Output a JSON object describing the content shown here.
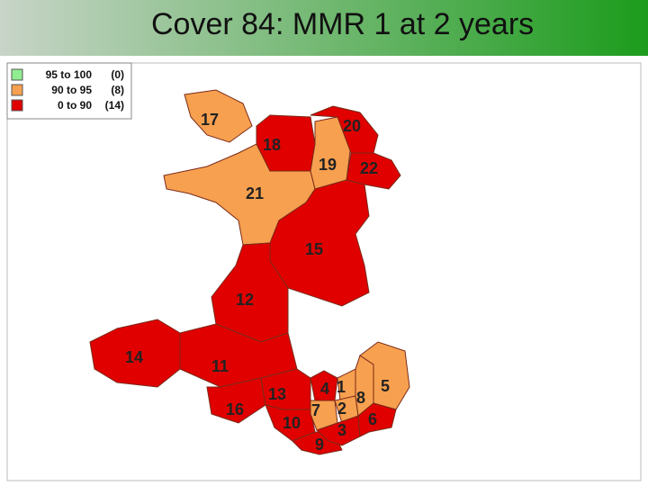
{
  "title": "Cover 84: MMR 1 at 2 years",
  "legend": [
    {
      "range": "95 to 100",
      "count": "(0)",
      "color": "#90ee90"
    },
    {
      "range": "90 to  95",
      "count": "(8)",
      "color": "#f7a04f"
    },
    {
      "range": "0 to  90",
      "count": "(14)",
      "color": "#e00000"
    }
  ],
  "regions": [
    {
      "label": "17",
      "color": "#f7a04f"
    },
    {
      "label": "18",
      "color": "#e00000"
    },
    {
      "label": "20",
      "color": "#e00000"
    },
    {
      "label": "19",
      "color": "#f7a04f"
    },
    {
      "label": "22",
      "color": "#e00000"
    },
    {
      "label": "21",
      "color": "#f7a04f"
    },
    {
      "label": "15",
      "color": "#e00000"
    },
    {
      "label": "12",
      "color": "#e00000"
    },
    {
      "label": "14",
      "color": "#e00000"
    },
    {
      "label": "11",
      "color": "#e00000"
    },
    {
      "label": "16",
      "color": "#e00000"
    },
    {
      "label": "13",
      "color": "#e00000"
    },
    {
      "label": "10",
      "color": "#e00000"
    },
    {
      "label": "9",
      "color": "#e00000"
    },
    {
      "label": "4",
      "color": "#e00000"
    },
    {
      "label": "1",
      "color": "#f7a04f"
    },
    {
      "label": "7",
      "color": "#f7a04f"
    },
    {
      "label": "2",
      "color": "#f7a04f"
    },
    {
      "label": "8",
      "color": "#f7a04f"
    },
    {
      "label": "5",
      "color": "#f7a04f"
    },
    {
      "label": "3",
      "color": "#e00000"
    },
    {
      "label": "6",
      "color": "#e00000"
    }
  ]
}
